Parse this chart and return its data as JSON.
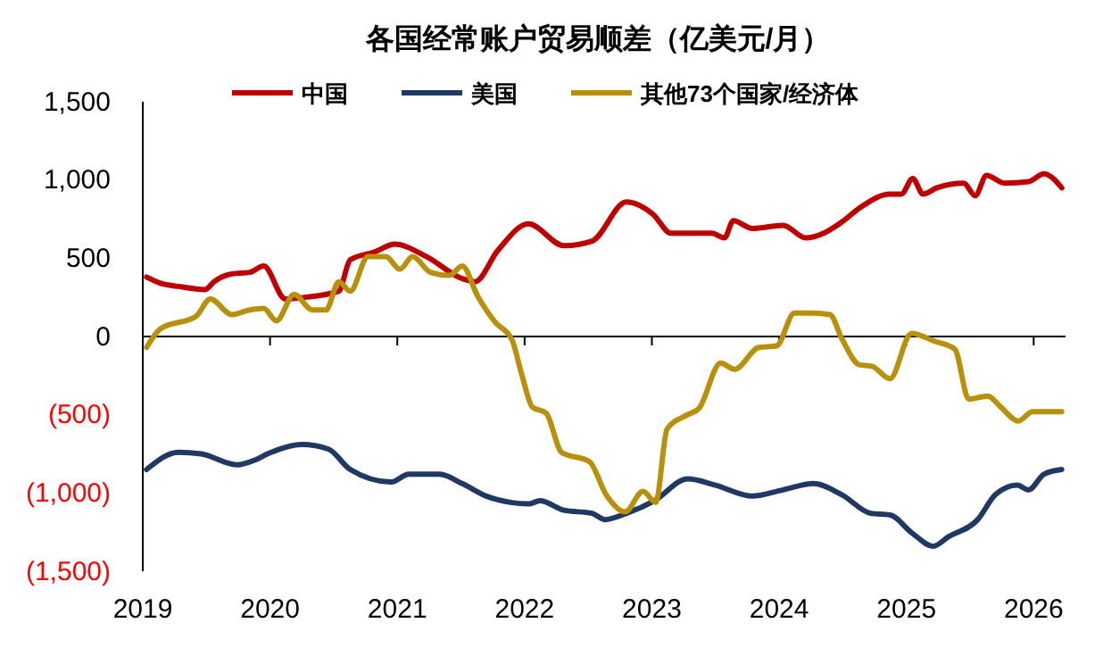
{
  "chart_data": {
    "type": "line",
    "title": "各国经常账户贸易顺差（亿美元/月）",
    "legend": "top",
    "xlim": [
      2019,
      2026.25
    ],
    "xticks": [
      2019,
      2020,
      2021,
      2022,
      2023,
      2024,
      2025,
      2026
    ],
    "ylim": [
      -1500,
      1500
    ],
    "yticks": [
      {
        "value": -1500,
        "label": "(1,500)"
      },
      {
        "value": -1000,
        "label": "(1,000)"
      },
      {
        "value": -500,
        "label": "(500)"
      },
      0,
      500,
      {
        "value": 1000,
        "label": "1,000"
      },
      {
        "value": 1500,
        "label": "1,500"
      }
    ],
    "series": [
      {
        "name": "中国",
        "color": "#c00000",
        "x": [
          2019.03,
          2019.14,
          2019.28,
          2019.49,
          2019.56,
          2019.7,
          2019.84,
          2019.95,
          2020.12,
          2020.27,
          2020.54,
          2020.63,
          2020.82,
          2020.98,
          2021.23,
          2021.51,
          2021.61,
          2021.79,
          2022.03,
          2022.31,
          2022.53,
          2022.8,
          2023.01,
          2023.15,
          2023.47,
          2023.57,
          2023.64,
          2023.79,
          2024.03,
          2024.21,
          2024.35,
          2024.49,
          2024.63,
          2024.87,
          2024.96,
          2025.05,
          2025.13,
          2025.24,
          2025.45,
          2025.54,
          2025.63,
          2025.77,
          2025.96,
          2026.08,
          2026.22
        ],
        "values": [
          380,
          340,
          320,
          300,
          350,
          400,
          410,
          450,
          240,
          250,
          290,
          490,
          540,
          590,
          510,
          370,
          350,
          550,
          720,
          580,
          610,
          860,
          780,
          660,
          660,
          630,
          740,
          690,
          710,
          630,
          660,
          730,
          820,
          910,
          910,
          1010,
          910,
          950,
          980,
          900,
          1030,
          980,
          990,
          1040,
          950
        ]
      },
      {
        "name": "美国",
        "color": "#1f3864",
        "x": [
          2019.03,
          2019.28,
          2019.46,
          2019.74,
          2019.88,
          2019.98,
          2020.25,
          2020.46,
          2020.63,
          2020.95,
          2021.09,
          2021.33,
          2021.51,
          2021.7,
          2021.89,
          2022.03,
          2022.12,
          2022.31,
          2022.53,
          2022.63,
          2022.8,
          2023.02,
          2023.28,
          2023.5,
          2023.79,
          2024.03,
          2024.27,
          2024.49,
          2024.72,
          2024.87,
          2025.05,
          2025.21,
          2025.33,
          2025.56,
          2025.7,
          2025.87,
          2025.96,
          2026.08,
          2026.22
        ],
        "values": [
          -850,
          -740,
          -750,
          -820,
          -790,
          -750,
          -690,
          -720,
          -850,
          -930,
          -880,
          -880,
          -940,
          -1020,
          -1060,
          -1070,
          -1050,
          -1110,
          -1130,
          -1170,
          -1130,
          -1050,
          -910,
          -950,
          -1020,
          -980,
          -940,
          -1010,
          -1130,
          -1140,
          -1260,
          -1340,
          -1280,
          -1170,
          -1010,
          -950,
          -980,
          -880,
          -850
        ]
      },
      {
        "name": "其他73个国家/经济体",
        "color": "#b8900b",
        "x": [
          2019.03,
          2019.14,
          2019.42,
          2019.53,
          2019.7,
          2019.84,
          2019.95,
          2020.05,
          2020.19,
          2020.33,
          2020.44,
          2020.54,
          2020.63,
          2020.77,
          2020.91,
          2021.02,
          2021.12,
          2021.26,
          2021.41,
          2021.51,
          2021.63,
          2021.77,
          2021.9,
          2021.98,
          2022.06,
          2022.17,
          2022.29,
          2022.51,
          2022.64,
          2022.79,
          2022.93,
          2023.03,
          2023.12,
          2023.28,
          2023.37,
          2023.54,
          2023.65,
          2023.84,
          2023.98,
          2024.12,
          2024.26,
          2024.4,
          2024.49,
          2024.63,
          2024.73,
          2024.87,
          2025.04,
          2025.22,
          2025.38,
          2025.49,
          2025.64,
          2025.74,
          2025.88,
          2025.99,
          2026.22
        ],
        "values": [
          -70,
          50,
          130,
          240,
          140,
          170,
          180,
          100,
          270,
          170,
          170,
          350,
          290,
          510,
          510,
          430,
          510,
          410,
          390,
          450,
          260,
          90,
          -20,
          -250,
          -450,
          -490,
          -740,
          -800,
          -1010,
          -1120,
          -990,
          -1060,
          -590,
          -500,
          -460,
          -170,
          -210,
          -70,
          -60,
          150,
          150,
          140,
          -10,
          -180,
          -190,
          -270,
          20,
          -30,
          -80,
          -400,
          -380,
          -450,
          -540,
          -480,
          -480
        ]
      }
    ]
  }
}
